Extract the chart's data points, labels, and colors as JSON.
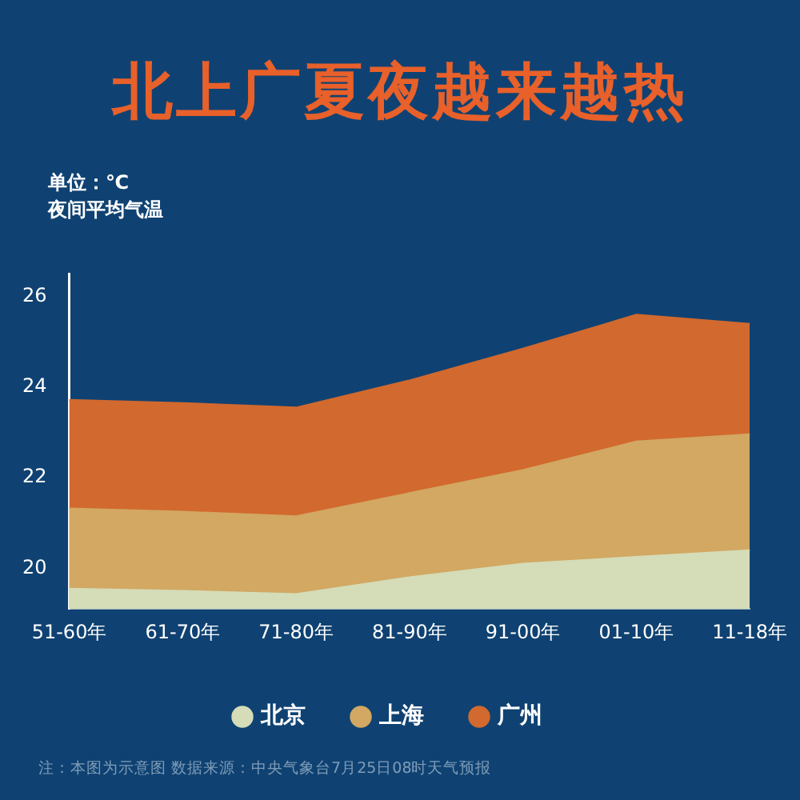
{
  "chart_data": {
    "type": "area",
    "title": "北上广夏夜越来越热",
    "ylabel": "夜间平均气温",
    "annotations": [
      "单位：℃",
      "注：本图为示意图 数据来源：中央气象台7月25日08时天气预报"
    ],
    "categories": [
      "51-60年",
      "61-70年",
      "71-80年",
      "81-90年",
      "91-00年",
      "01-10年",
      "11-18年"
    ],
    "series": [
      {
        "name": "北京",
        "color": "#d4dcb8",
        "values": [
          19.55,
          19.5,
          19.43,
          19.8,
          20.1,
          20.25,
          20.4
        ]
      },
      {
        "name": "上海",
        "color": "#d2a862",
        "values": [
          21.32,
          21.25,
          21.15,
          21.66,
          22.17,
          22.8,
          22.96
        ]
      },
      {
        "name": "广州",
        "color": "#d2692e",
        "values": [
          23.72,
          23.65,
          23.55,
          24.15,
          24.85,
          25.6,
          25.4
        ]
      }
    ],
    "ylim": [
      19.1,
      26.5
    ],
    "yticks": [
      20,
      22,
      24,
      26
    ],
    "grid": false,
    "legend": "bottom",
    "marker": "none"
  }
}
